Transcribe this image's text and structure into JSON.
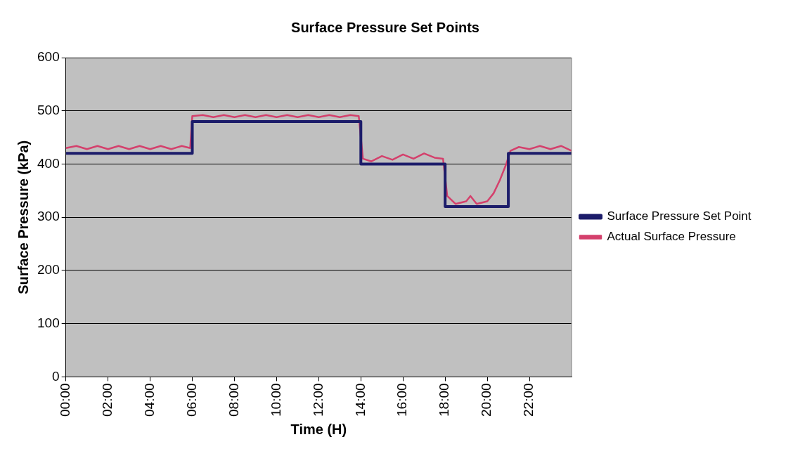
{
  "chart_data": {
    "type": "line",
    "title": "Surface Pressure Set Points",
    "xlabel": "Time (H)",
    "ylabel": "Surface Pressure (kPa)",
    "xlim": [
      0,
      24
    ],
    "xticks": [
      {
        "value": 0,
        "label": "00:00"
      },
      {
        "value": 2,
        "label": "02:00"
      },
      {
        "value": 4,
        "label": "04:00"
      },
      {
        "value": 6,
        "label": "06:00"
      },
      {
        "value": 8,
        "label": "08:00"
      },
      {
        "value": 10,
        "label": "10:00"
      },
      {
        "value": 12,
        "label": "12:00"
      },
      {
        "value": 14,
        "label": "14:00"
      },
      {
        "value": 16,
        "label": "16:00"
      },
      {
        "value": 18,
        "label": "18:00"
      },
      {
        "value": 20,
        "label": "20:00"
      },
      {
        "value": 22,
        "label": "22:00"
      }
    ],
    "ylim": [
      0,
      600
    ],
    "yticks": [
      0,
      100,
      200,
      300,
      400,
      500,
      600
    ],
    "grid": "y",
    "legend": "right",
    "marker": "none",
    "series": [
      {
        "name": "Surface Pressure Set Point",
        "type": "step",
        "color": "#1c1c6a",
        "x": [
          0,
          6,
          14,
          18,
          21,
          24
        ],
        "values": [
          420,
          480,
          400,
          320,
          420,
          420
        ]
      },
      {
        "name": "Actual Surface Pressure",
        "type": "line",
        "color": "#d4406c",
        "x": [
          0,
          0.5,
          1,
          1.5,
          2,
          2.5,
          3,
          3.5,
          4,
          4.5,
          5,
          5.5,
          5.9,
          6,
          6.5,
          7,
          7.5,
          8,
          8.5,
          9,
          9.5,
          10,
          10.5,
          11,
          11.5,
          12,
          12.5,
          13,
          13.5,
          13.9,
          14.1,
          14.5,
          15,
          15.5,
          16,
          16.5,
          17,
          17.5,
          17.9,
          18.1,
          18.5,
          19,
          19.2,
          19.5,
          20,
          20.3,
          20.6,
          20.9,
          21.1,
          21.5,
          22,
          22.5,
          23,
          23.5,
          24
        ],
        "values": [
          430,
          434,
          428,
          434,
          428,
          434,
          428,
          434,
          428,
          434,
          428,
          434,
          430,
          490,
          492,
          488,
          492,
          488,
          492,
          488,
          492,
          488,
          492,
          488,
          492,
          488,
          492,
          488,
          492,
          490,
          410,
          405,
          415,
          408,
          418,
          410,
          420,
          412,
          410,
          340,
          325,
          330,
          340,
          325,
          330,
          345,
          370,
          400,
          425,
          432,
          428,
          434,
          428,
          434,
          425
        ]
      }
    ]
  }
}
